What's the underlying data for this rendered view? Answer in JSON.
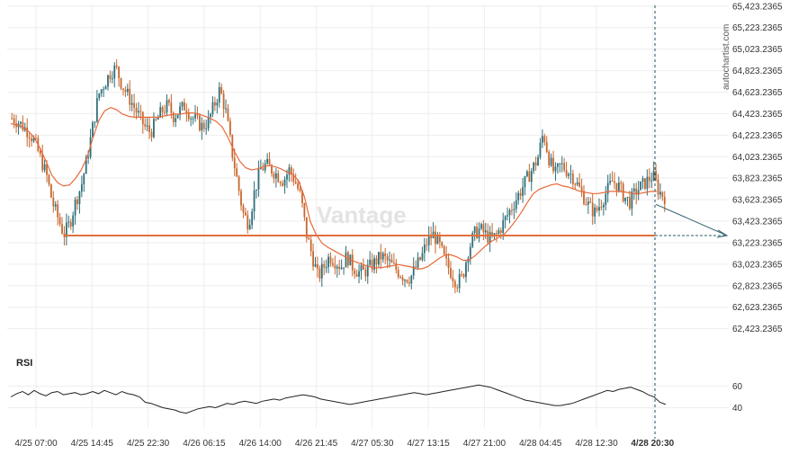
{
  "chart_data": {
    "type": "candlestick",
    "y_ticks": [
      "65,423.2365",
      "65,223.2365",
      "65,023.2365",
      "64,823.2365",
      "64,623.2365",
      "64,423.2365",
      "64,223.2365",
      "64,023.2365",
      "63,823.2365",
      "63,623.2365",
      "63,423.2365",
      "63,223.2365",
      "63,023.2365",
      "62,823.2365",
      "62,623.2365",
      "62,423.2365"
    ],
    "y_tick_values": [
      65423.2365,
      65223.2365,
      65023.2365,
      64823.2365,
      64623.2365,
      64423.2365,
      64223.2365,
      64023.2365,
      63823.2365,
      63623.2365,
      63423.2365,
      63223.2365,
      63023.2365,
      62823.2365,
      62623.2365,
      62423.2365
    ],
    "ylim": [
      62370,
      65430
    ],
    "x_ticks": [
      "4/25 07:00",
      "4/25 14:45",
      "4/25 22:30",
      "4/26 06:15",
      "4/26 14:00",
      "4/26 21:45",
      "4/27 05:30",
      "4/27 13:15",
      "4/27 21:00",
      "4/28 04:45",
      "4/28 12:30",
      "4/28 20:30"
    ],
    "highlight_x_tick": "4/28 20:30",
    "support_level": 63290,
    "projection": {
      "from": 63580,
      "to": 63290
    },
    "price_path": [
      64380,
      64350,
      64300,
      64250,
      64150,
      64000,
      63850,
      63600,
      63450,
      63300,
      63400,
      63600,
      63750,
      64000,
      64300,
      64600,
      64700,
      64800,
      64850,
      64700,
      64600,
      64500,
      64400,
      64300,
      64250,
      64350,
      64450,
      64500,
      64400,
      64450,
      64500,
      64400,
      64350,
      64300,
      64350,
      64500,
      64650,
      64450,
      64100,
      63800,
      63500,
      63400,
      63700,
      63900,
      63950,
      63900,
      63850,
      63800,
      63900,
      63800,
      63650,
      63300,
      63100,
      62900,
      63000,
      63100,
      63050,
      63000,
      63100,
      63000,
      62950,
      62950,
      63000,
      63050,
      63100,
      63050,
      63000,
      62950,
      62900,
      62900,
      63000,
      63100,
      63250,
      63300,
      63200,
      63050,
      62950,
      62850,
      62900,
      63150,
      63300,
      63350,
      63300,
      63250,
      63300,
      63400,
      63500,
      63600,
      63700,
      63800,
      63900,
      64000,
      64250,
      64000,
      63850,
      63950,
      63900,
      63850,
      63750,
      63650,
      63550,
      63500,
      63600,
      63700,
      63800,
      63750,
      63650,
      63600,
      63700,
      63750,
      63800,
      63850,
      63700,
      63650
    ],
    "ma_path": [
      64330,
      64320,
      64300,
      64260,
      64200,
      64100,
      63980,
      63850,
      63780,
      63750,
      63760,
      63820,
      63900,
      64020,
      64200,
      64360,
      64450,
      64480,
      64460,
      64420,
      64400,
      64390,
      64390,
      64390,
      64390,
      64390,
      64400,
      64410,
      64420,
      64420,
      64430,
      64430,
      64420,
      64400,
      64380,
      64350,
      64300,
      64200,
      64080,
      63980,
      63920,
      63900,
      63910,
      63930,
      63940,
      63930,
      63910,
      63880,
      63860,
      63800,
      63650,
      63420,
      63300,
      63220,
      63180,
      63150,
      63120,
      63090,
      63060,
      63040,
      63020,
      63000,
      62990,
      62990,
      63000,
      63010,
      63020,
      63010,
      63000,
      62980,
      62980,
      63000,
      63040,
      63080,
      63110,
      63110,
      63090,
      63060,
      63060,
      63100,
      63150,
      63200,
      63240,
      63270,
      63300,
      63360,
      63430,
      63510,
      63600,
      63680,
      63720,
      63740,
      63760,
      63770,
      63750,
      63740,
      63720,
      63700,
      63690,
      63680,
      63680,
      63690,
      63700,
      63700,
      63700,
      63690,
      63680,
      63680,
      63690,
      63700,
      63700
    ],
    "rsi": {
      "label": "RSI",
      "y_ticks": [
        "60",
        "40"
      ],
      "y_tick_values": [
        60,
        40
      ],
      "ylim": [
        28,
        72
      ],
      "values": [
        50,
        53,
        55,
        52,
        56,
        53,
        51,
        54,
        55,
        52,
        53,
        54,
        52,
        53,
        55,
        53,
        56,
        54,
        52,
        55,
        53,
        52,
        50,
        45,
        44,
        42,
        40,
        39,
        38,
        36,
        35,
        37,
        39,
        40,
        41,
        40,
        42,
        44,
        43,
        45,
        46,
        45,
        44,
        46,
        47,
        48,
        47,
        49,
        50,
        51,
        52,
        51,
        50,
        48,
        47,
        46,
        45,
        44,
        43,
        44,
        45,
        46,
        47,
        48,
        49,
        50,
        51,
        52,
        53,
        54,
        53,
        52,
        53,
        54,
        55,
        56,
        57,
        58,
        59,
        60,
        61,
        60,
        59,
        57,
        55,
        53,
        51,
        49,
        47,
        46,
        45,
        44,
        43,
        42,
        42,
        43,
        44,
        46,
        48,
        50,
        52,
        54,
        56,
        55,
        57,
        58,
        59,
        57,
        55,
        52,
        50,
        45,
        43
      ]
    }
  },
  "brand_text": "autochartist.com",
  "watermark_text": "Vantage",
  "colors": {
    "bull": "#2e6f7a",
    "bear": "#c7672e",
    "ma": "#e8693a",
    "support": "#e0703f",
    "projection": "#2d5f6b",
    "vline": "#1b4f5f",
    "grid": "#eeeeee",
    "rsi_line": "#222222"
  }
}
